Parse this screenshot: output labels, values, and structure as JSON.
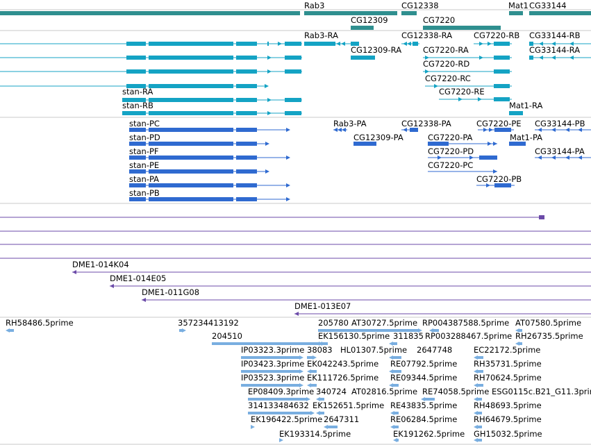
{
  "colors": {
    "gene": "#2f8f8f",
    "transcript": "#14a3c4",
    "protein": "#2f6ad0",
    "clone": "#6b4aa8",
    "est": "#79aee0",
    "divider": "#c8c8c8"
  },
  "gene_labels": [
    "Rab3",
    "CG12338",
    "Mat1",
    "CG33144",
    "CG12309",
    "CG7220"
  ],
  "transcript_labels": [
    "Rab3-RA",
    "CG12338-RA",
    "CG7220-RB",
    "CG33144-RB",
    "CG12309-RA",
    "CG7220-RA",
    "CG33144-RA",
    "CG7220-RD",
    "CG7220-RC",
    "CG7220-RE",
    "stan-RA",
    "stan-RB",
    "Mat1-RA"
  ],
  "protein_labels": [
    "stan-PC",
    "Rab3-PA",
    "CG12338-PA",
    "CG7220-PE",
    "CG33144-PB",
    "CG12309-PA",
    "CG7220-PA",
    "Mat1-PA",
    "stan-PD",
    "CG7220-PD",
    "CG33144-PA",
    "stan-PF",
    "CG7220-PC",
    "stan-PE",
    "stan-PA",
    "CG7220-PB",
    "stan-PB"
  ],
  "clone_labels": [
    "DME1-014K04",
    "DME1-014E05",
    "DME1-011G08",
    "DME1-013E07"
  ],
  "est_labels": [
    "RH58486.5prime",
    "357234413192",
    "205780",
    "AT30727.5prime",
    "RP004387588.5prime",
    "AT07580.5prime",
    "204510",
    "EK156130.5prime",
    "311835",
    "RP003288467.5prime",
    "RH26735.5prime",
    "IP03323.3prime",
    "38083",
    "HL01307.5prime",
    "2647748",
    "EC22172.5prime",
    "IP03423.3prime",
    "EK042243.5prime",
    "RE07792.5prime",
    "RH35731.5prime",
    "IP03523.3prime",
    "EK111726.5prime",
    "RE09344.5prime",
    "RH70624.5prime",
    "EP08409.3prime",
    "340724",
    "AT02816.5prime",
    "RE74058.5prime",
    "ESG0115c.B21_G11.3prime",
    "314133484632",
    "EK152651.5prime",
    "RE43835.5prime",
    "RH48693.5prime",
    "EK196422.5prime",
    "2647311",
    "RE06284.5prime",
    "RH64679.5prime",
    "EK193314.5prime",
    "EK191262.5prime",
    "GH15032.5prime"
  ]
}
